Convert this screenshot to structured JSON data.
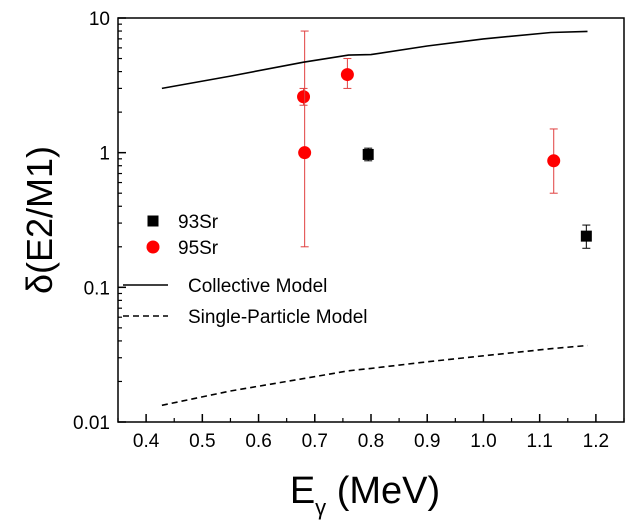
{
  "chart_data": {
    "type": "scatter",
    "title": "",
    "xlabel_main": "E",
    "xlabel_sub": "γ",
    "xlabel_unit": " (MeV)",
    "ylabel": "δ(E2/M1)",
    "xlim": [
      0.35,
      1.25
    ],
    "ylim": [
      0.01,
      10
    ],
    "yscale": "log",
    "xticks": [
      "0.4",
      "0.5",
      "0.6",
      "0.7",
      "0.8",
      "0.9",
      "1.0",
      "1.1",
      "1.2"
    ],
    "xtick_values": [
      0.4,
      0.5,
      0.6,
      0.7,
      0.8,
      0.9,
      1.0,
      1.1,
      1.2
    ],
    "yticks": [
      "0.01",
      "0.1",
      "1",
      "10"
    ],
    "ytick_values": [
      0.01,
      0.1,
      1,
      10
    ],
    "legend_position": "left",
    "series": [
      {
        "name": "93Sr",
        "kind": "points",
        "marker": "square",
        "color": "#000000",
        "points": [
          {
            "x": 0.795,
            "y": 0.97,
            "ylow": 0.87,
            "yhigh": 1.08
          },
          {
            "x": 1.183,
            "y": 0.24,
            "ylow": 0.195,
            "yhigh": 0.29
          }
        ]
      },
      {
        "name": "95Sr",
        "kind": "points",
        "marker": "circle",
        "color": "#ff0000",
        "points": [
          {
            "x": 0.68,
            "y": 2.6,
            "ylow": 2.25,
            "yhigh": 3.0
          },
          {
            "x": 0.682,
            "y": 1.0,
            "ylow": 0.2,
            "yhigh": 8.0
          },
          {
            "x": 0.758,
            "y": 3.8,
            "ylow": 3.0,
            "yhigh": 5.0
          },
          {
            "x": 1.125,
            "y": 0.87,
            "ylow": 0.5,
            "yhigh": 1.5
          }
        ]
      },
      {
        "name": "Collective Model",
        "kind": "line",
        "dash": "solid",
        "color": "#000000",
        "x": [
          0.428,
          0.55,
          0.68,
          0.76,
          0.8,
          0.9,
          1.0,
          1.12,
          1.185
        ],
        "y": [
          3.0,
          3.7,
          4.7,
          5.3,
          5.35,
          6.2,
          7.0,
          7.8,
          7.95
        ]
      },
      {
        "name": "Single-Particle Model",
        "kind": "line",
        "dash": "dashed",
        "color": "#000000",
        "x": [
          0.428,
          0.55,
          0.68,
          0.76,
          0.8,
          0.9,
          1.0,
          1.12,
          1.185
        ],
        "y": [
          0.0133,
          0.017,
          0.021,
          0.024,
          0.025,
          0.028,
          0.031,
          0.035,
          0.037
        ]
      }
    ]
  }
}
